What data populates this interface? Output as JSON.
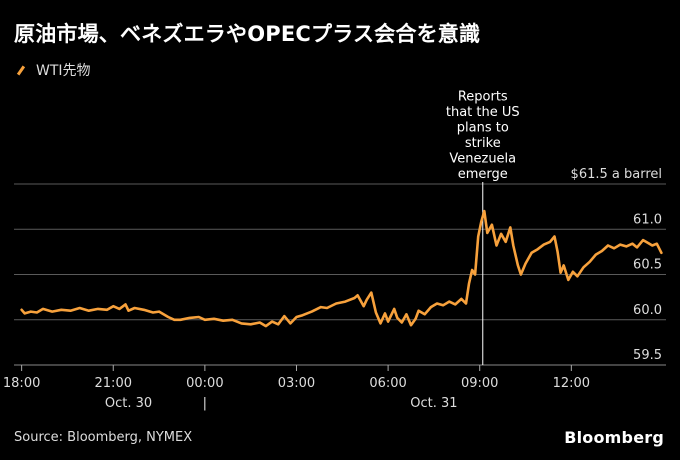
{
  "title": "原油市場、ベネズエラやOPECプラス会合を意識",
  "legend": {
    "series_name": "WTI先物",
    "color": "#f7a13c"
  },
  "source": "Source: Bloomberg, NYMEX",
  "logo": "Bloomberg",
  "chart_data": {
    "type": "line",
    "title": "原油市場、ベネズエラやOPECプラス会合を意識",
    "xlabel": "",
    "ylabel": "",
    "ylim": [
      59.5,
      61.5
    ],
    "y_ticks": [
      {
        "value": 61.5,
        "label": "$61.5 a barrel"
      },
      {
        "value": 61.0,
        "label": "61.0"
      },
      {
        "value": 60.5,
        "label": "60.5"
      },
      {
        "value": 60.0,
        "label": "60.0"
      },
      {
        "value": 59.5,
        "label": "59.5"
      }
    ],
    "xlim_hours": [
      17.75,
      39.1
    ],
    "x_ticks": [
      {
        "value": 18,
        "label": "18:00"
      },
      {
        "value": 21,
        "label": "21:00"
      },
      {
        "value": 24,
        "label": "00:00"
      },
      {
        "value": 27,
        "label": "03:00"
      },
      {
        "value": 30,
        "label": "06:00"
      },
      {
        "value": 33,
        "label": "09:00"
      },
      {
        "value": 36,
        "label": "12:00"
      }
    ],
    "date_labels": [
      {
        "value": 21.5,
        "label": "Oct. 30"
      },
      {
        "value": 24,
        "label": "|"
      },
      {
        "value": 31.5,
        "label": "Oct. 31"
      }
    ],
    "grid": true,
    "annotation": {
      "x": 33.1,
      "text": [
        "Reports",
        "that the US",
        "plans to",
        "strike",
        "Venezuela",
        "emerge"
      ]
    },
    "series": [
      {
        "name": "WTI先物",
        "color": "#f7a13c",
        "points": [
          [
            18.0,
            60.11
          ],
          [
            18.1,
            60.07
          ],
          [
            18.3,
            60.09
          ],
          [
            18.5,
            60.08
          ],
          [
            18.7,
            60.12
          ],
          [
            19.0,
            60.09
          ],
          [
            19.3,
            60.11
          ],
          [
            19.6,
            60.1
          ],
          [
            19.9,
            60.13
          ],
          [
            20.2,
            60.1
          ],
          [
            20.5,
            60.12
          ],
          [
            20.8,
            60.11
          ],
          [
            21.0,
            60.15
          ],
          [
            21.2,
            60.12
          ],
          [
            21.4,
            60.17
          ],
          [
            21.5,
            60.1
          ],
          [
            21.7,
            60.13
          ],
          [
            22.0,
            60.11
          ],
          [
            22.3,
            60.08
          ],
          [
            22.5,
            60.09
          ],
          [
            22.8,
            60.03
          ],
          [
            23.0,
            60.0
          ],
          [
            23.2,
            60.0
          ],
          [
            23.5,
            60.02
          ],
          [
            23.8,
            60.03
          ],
          [
            24.0,
            60.0
          ],
          [
            24.3,
            60.01
          ],
          [
            24.6,
            59.99
          ],
          [
            24.9,
            60.0
          ],
          [
            25.2,
            59.96
          ],
          [
            25.5,
            59.95
          ],
          [
            25.8,
            59.97
          ],
          [
            26.0,
            59.93
          ],
          [
            26.2,
            59.98
          ],
          [
            26.4,
            59.95
          ],
          [
            26.6,
            60.04
          ],
          [
            26.8,
            59.96
          ],
          [
            27.0,
            60.03
          ],
          [
            27.2,
            60.05
          ],
          [
            27.5,
            60.09
          ],
          [
            27.8,
            60.14
          ],
          [
            28.0,
            60.13
          ],
          [
            28.3,
            60.18
          ],
          [
            28.6,
            60.2
          ],
          [
            28.9,
            60.24
          ],
          [
            29.0,
            60.27
          ],
          [
            29.2,
            60.15
          ],
          [
            29.3,
            60.22
          ],
          [
            29.45,
            60.3
          ],
          [
            29.6,
            60.08
          ],
          [
            29.75,
            59.96
          ],
          [
            29.9,
            60.07
          ],
          [
            30.0,
            59.98
          ],
          [
            30.2,
            60.12
          ],
          [
            30.3,
            60.02
          ],
          [
            30.45,
            59.97
          ],
          [
            30.6,
            60.06
          ],
          [
            30.75,
            59.94
          ],
          [
            30.9,
            60.01
          ],
          [
            31.0,
            60.1
          ],
          [
            31.2,
            60.06
          ],
          [
            31.4,
            60.14
          ],
          [
            31.6,
            60.18
          ],
          [
            31.8,
            60.16
          ],
          [
            32.0,
            60.2
          ],
          [
            32.2,
            60.17
          ],
          [
            32.4,
            60.23
          ],
          [
            32.55,
            60.18
          ],
          [
            32.65,
            60.4
          ],
          [
            32.75,
            60.55
          ],
          [
            32.85,
            60.5
          ],
          [
            32.95,
            60.92
          ],
          [
            33.05,
            61.08
          ],
          [
            33.15,
            61.2
          ],
          [
            33.25,
            60.96
          ],
          [
            33.4,
            61.05
          ],
          [
            33.55,
            60.82
          ],
          [
            33.7,
            60.95
          ],
          [
            33.85,
            60.86
          ],
          [
            34.0,
            61.02
          ],
          [
            34.1,
            60.82
          ],
          [
            34.25,
            60.6
          ],
          [
            34.35,
            60.5
          ],
          [
            34.5,
            60.62
          ],
          [
            34.7,
            60.74
          ],
          [
            34.9,
            60.78
          ],
          [
            35.1,
            60.83
          ],
          [
            35.3,
            60.86
          ],
          [
            35.45,
            60.92
          ],
          [
            35.55,
            60.75
          ],
          [
            35.65,
            60.52
          ],
          [
            35.75,
            60.6
          ],
          [
            35.9,
            60.44
          ],
          [
            36.05,
            60.53
          ],
          [
            36.2,
            60.48
          ],
          [
            36.4,
            60.58
          ],
          [
            36.6,
            60.64
          ],
          [
            36.8,
            60.72
          ],
          [
            37.0,
            60.76
          ],
          [
            37.2,
            60.82
          ],
          [
            37.4,
            60.79
          ],
          [
            37.6,
            60.83
          ],
          [
            37.8,
            60.81
          ],
          [
            38.0,
            60.84
          ],
          [
            38.15,
            60.8
          ],
          [
            38.35,
            60.88
          ],
          [
            38.5,
            60.85
          ],
          [
            38.65,
            60.82
          ],
          [
            38.8,
            60.84
          ],
          [
            38.95,
            60.74
          ]
        ]
      }
    ]
  }
}
